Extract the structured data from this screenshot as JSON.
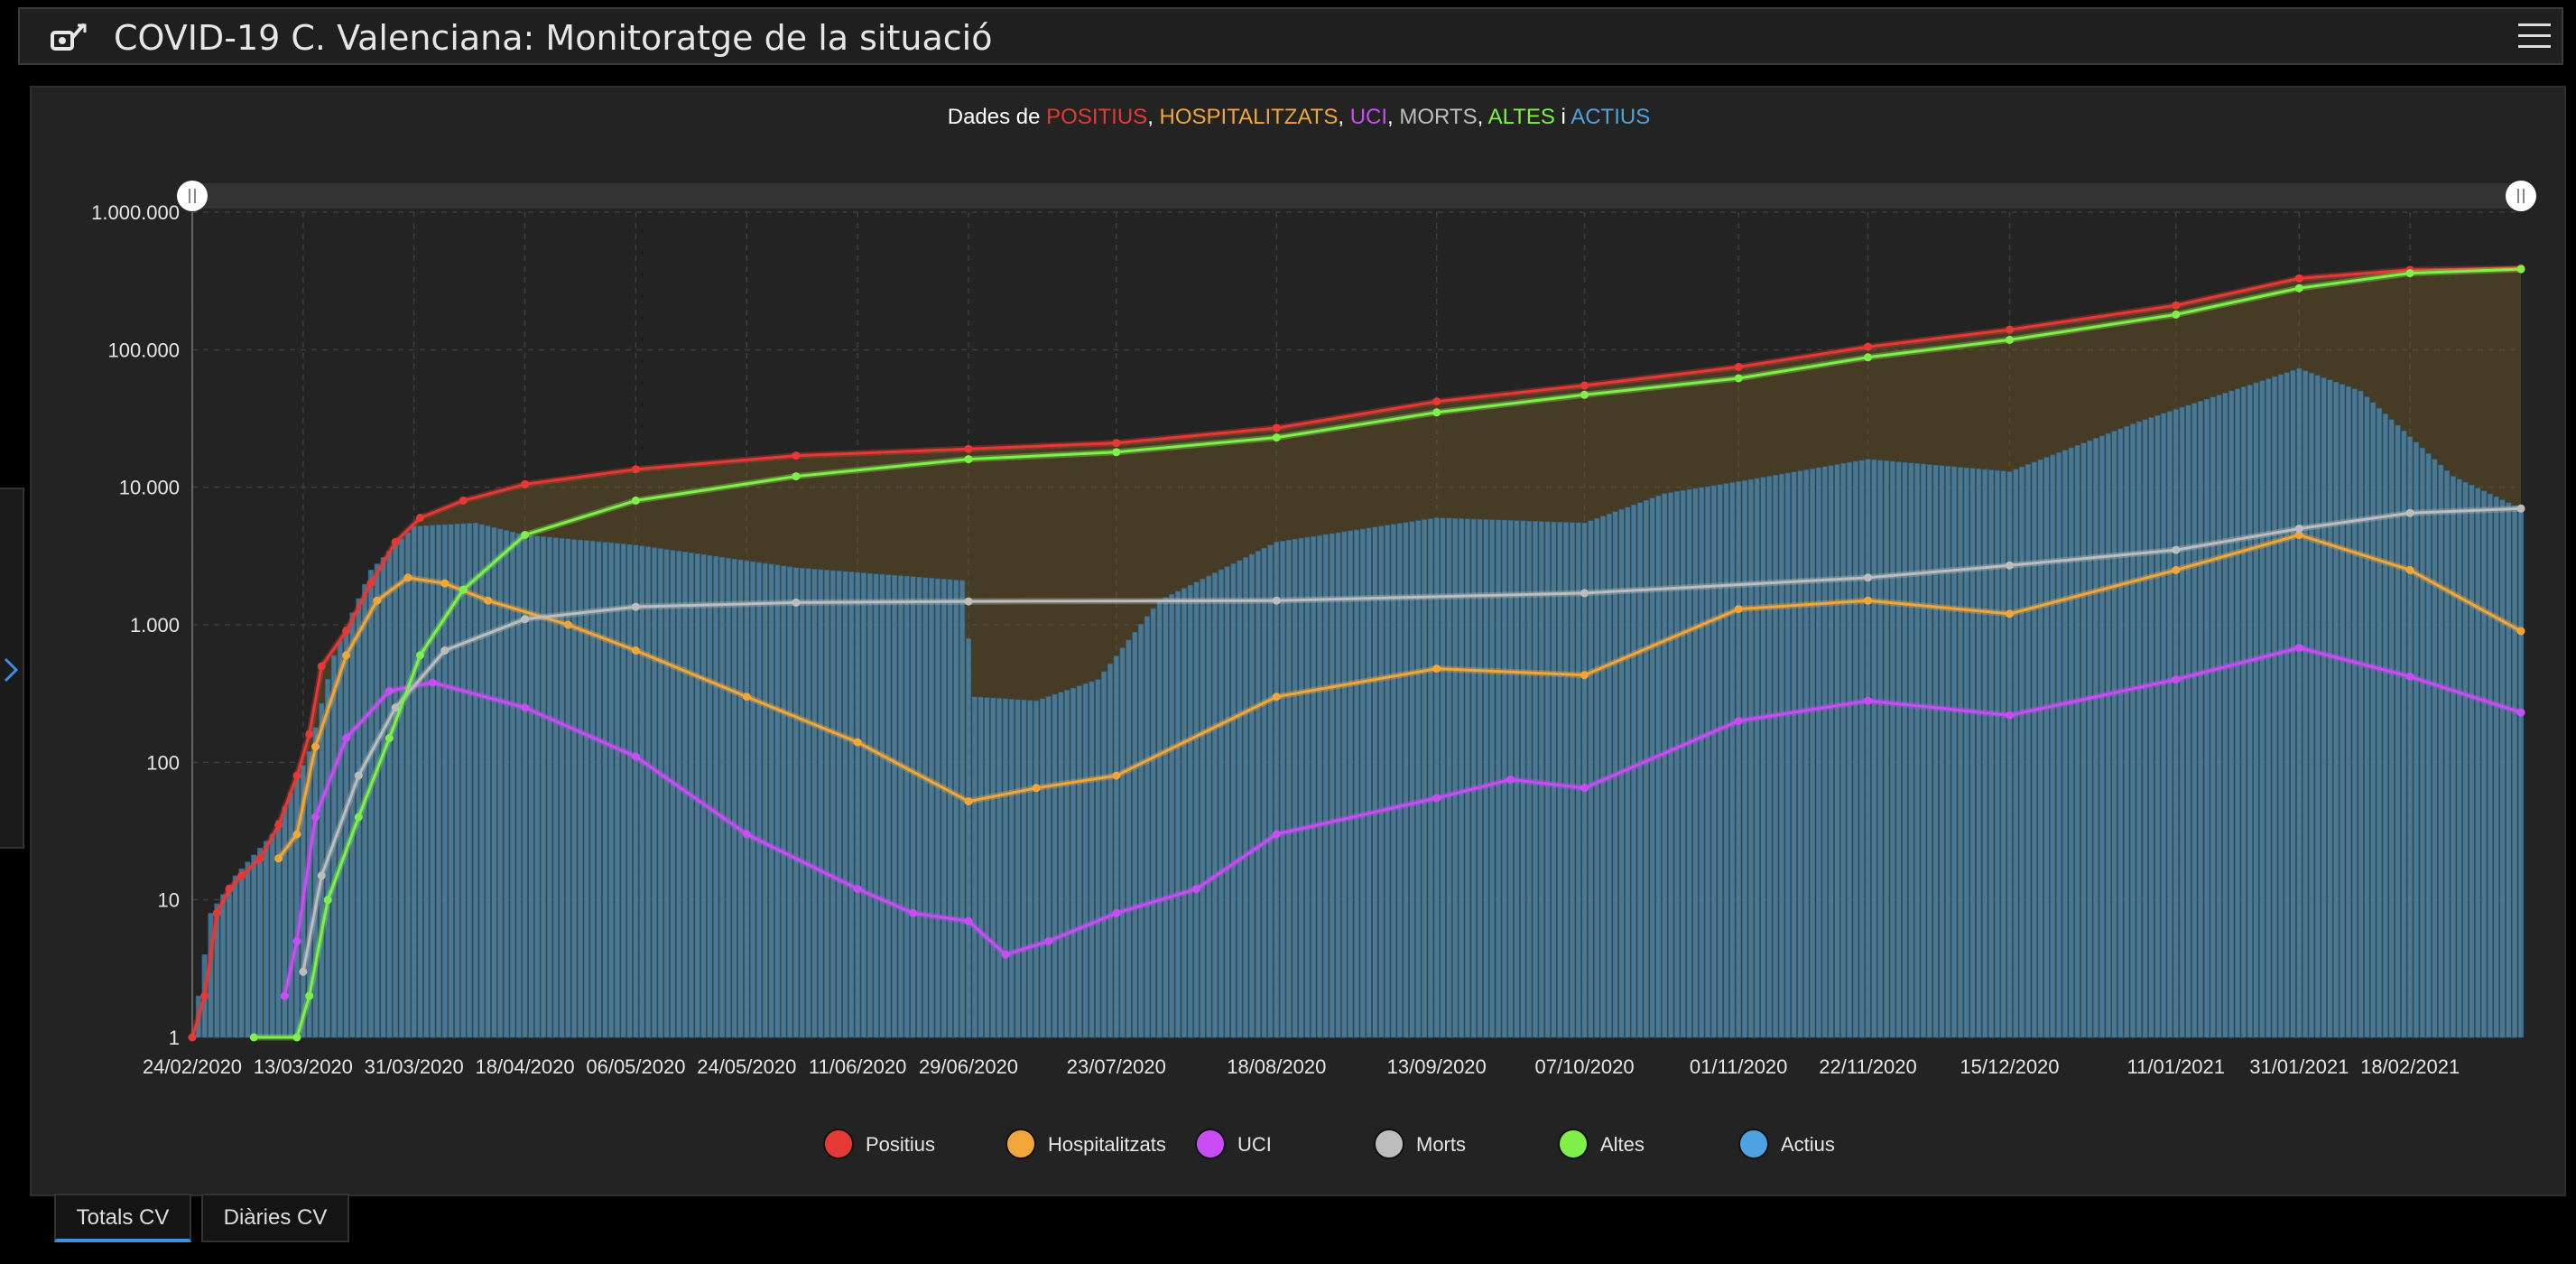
{
  "header": {
    "title": "COVID-19 C. Valenciana: Monitoratge de la situació",
    "icon": "app-logo-icon",
    "menu_icon": "hamburger-menu-icon"
  },
  "side_panel": {
    "toggle_icon": "chevron-right-icon"
  },
  "tabs": [
    {
      "label": "Totals CV",
      "active": true
    },
    {
      "label": "Diàries CV",
      "active": false
    }
  ],
  "chart_data": {
    "type": "line",
    "title_parts": [
      {
        "text": "Dades de ",
        "color": "#ffffff"
      },
      {
        "text": "POSITIUS",
        "color": "#e53935"
      },
      {
        "text": ", ",
        "color": "#ffffff"
      },
      {
        "text": "HOSPITALITZATS",
        "color": "#f0a63a"
      },
      {
        "text": ", ",
        "color": "#ffffff"
      },
      {
        "text": "UCI",
        "color": "#c94cf5"
      },
      {
        "text": ", ",
        "color": "#ffffff"
      },
      {
        "text": "MORTS",
        "color": "#bdbdbd"
      },
      {
        "text": ", ",
        "color": "#ffffff"
      },
      {
        "text": "ALTES",
        "color": "#7ff04a"
      },
      {
        "text": " i ",
        "color": "#ffffff"
      },
      {
        "text": "ACTIUS",
        "color": "#4ca3e0"
      }
    ],
    "y_scale": "log",
    "ylim": [
      1,
      1000000
    ],
    "y_ticks": [
      {
        "value": 1,
        "label": "1"
      },
      {
        "value": 10,
        "label": "10"
      },
      {
        "value": 100,
        "label": "100"
      },
      {
        "value": 1000,
        "label": "1.000"
      },
      {
        "value": 10000,
        "label": "10.000"
      },
      {
        "value": 100000,
        "label": "100.000"
      },
      {
        "value": 1000000,
        "label": "1.000.000"
      }
    ],
    "x_range": [
      "2020-02-24",
      "2021-03-08"
    ],
    "x_ticks": [
      {
        "date": "2020-02-24",
        "label": "24/02/2020"
      },
      {
        "date": "2020-03-13",
        "label": "13/03/2020"
      },
      {
        "date": "2020-03-31",
        "label": "31/03/2020"
      },
      {
        "date": "2020-04-18",
        "label": "18/04/2020"
      },
      {
        "date": "2020-05-06",
        "label": "06/05/2020"
      },
      {
        "date": "2020-05-24",
        "label": "24/05/2020"
      },
      {
        "date": "2020-06-11",
        "label": "11/06/2020"
      },
      {
        "date": "2020-06-29",
        "label": "29/06/2020"
      },
      {
        "date": "2020-07-23",
        "label": "23/07/2020"
      },
      {
        "date": "2020-08-18",
        "label": "18/08/2020"
      },
      {
        "date": "2020-09-13",
        "label": "13/09/2020"
      },
      {
        "date": "2020-10-07",
        "label": "07/10/2020"
      },
      {
        "date": "2020-11-01",
        "label": "01/11/2020"
      },
      {
        "date": "2020-11-22",
        "label": "22/11/2020"
      },
      {
        "date": "2020-12-15",
        "label": "15/12/2020"
      },
      {
        "date": "2021-01-11",
        "label": "11/01/2021"
      },
      {
        "date": "2021-01-31",
        "label": "31/01/2021"
      },
      {
        "date": "2021-02-18",
        "label": "18/02/2021"
      }
    ],
    "grid": true,
    "legend_position": "bottom",
    "series": [
      {
        "name": "Positius",
        "color": "#e53935",
        "kind": "line",
        "points": [
          [
            "2020-02-24",
            1
          ],
          [
            "2020-02-26",
            2
          ],
          [
            "2020-02-28",
            8
          ],
          [
            "2020-03-01",
            12
          ],
          [
            "2020-03-03",
            15
          ],
          [
            "2020-03-06",
            20
          ],
          [
            "2020-03-09",
            35
          ],
          [
            "2020-03-12",
            80
          ],
          [
            "2020-03-14",
            160
          ],
          [
            "2020-03-16",
            500
          ],
          [
            "2020-03-20",
            900
          ],
          [
            "2020-03-24",
            2000
          ],
          [
            "2020-03-28",
            4000
          ],
          [
            "2020-04-01",
            6000
          ],
          [
            "2020-04-08",
            8000
          ],
          [
            "2020-04-18",
            10500
          ],
          [
            "2020-05-06",
            13500
          ],
          [
            "2020-06-01",
            17000
          ],
          [
            "2020-06-29",
            19000
          ],
          [
            "2020-07-23",
            21000
          ],
          [
            "2020-08-18",
            27000
          ],
          [
            "2020-09-13",
            42000
          ],
          [
            "2020-10-07",
            55000
          ],
          [
            "2020-11-01",
            75000
          ],
          [
            "2020-11-22",
            105000
          ],
          [
            "2020-12-15",
            140000
          ],
          [
            "2021-01-11",
            210000
          ],
          [
            "2021-01-31",
            330000
          ],
          [
            "2021-02-18",
            380000
          ],
          [
            "2021-03-08",
            390000
          ]
        ]
      },
      {
        "name": "Hospitalitzats",
        "color": "#f0a63a",
        "kind": "line",
        "points": [
          [
            "2020-03-09",
            20
          ],
          [
            "2020-03-12",
            30
          ],
          [
            "2020-03-15",
            130
          ],
          [
            "2020-03-20",
            600
          ],
          [
            "2020-03-25",
            1500
          ],
          [
            "2020-03-30",
            2200
          ],
          [
            "2020-04-05",
            2000
          ],
          [
            "2020-04-12",
            1500
          ],
          [
            "2020-04-25",
            1000
          ],
          [
            "2020-05-06",
            650
          ],
          [
            "2020-05-24",
            300
          ],
          [
            "2020-06-11",
            140
          ],
          [
            "2020-06-29",
            52
          ],
          [
            "2020-07-10",
            65
          ],
          [
            "2020-07-23",
            80
          ],
          [
            "2020-08-18",
            300
          ],
          [
            "2020-09-13",
            480
          ],
          [
            "2020-10-07",
            430
          ],
          [
            "2020-11-01",
            1300
          ],
          [
            "2020-11-22",
            1500
          ],
          [
            "2020-12-15",
            1200
          ],
          [
            "2021-01-11",
            2500
          ],
          [
            "2021-01-31",
            4500
          ],
          [
            "2021-02-18",
            2500
          ],
          [
            "2021-03-08",
            900
          ]
        ]
      },
      {
        "name": "UCI",
        "color": "#c94cf5",
        "kind": "line",
        "points": [
          [
            "2020-03-10",
            2
          ],
          [
            "2020-03-12",
            5
          ],
          [
            "2020-03-15",
            40
          ],
          [
            "2020-03-20",
            150
          ],
          [
            "2020-03-27",
            330
          ],
          [
            "2020-04-03",
            380
          ],
          [
            "2020-04-18",
            250
          ],
          [
            "2020-05-06",
            110
          ],
          [
            "2020-05-24",
            30
          ],
          [
            "2020-06-11",
            12
          ],
          [
            "2020-06-20",
            8
          ],
          [
            "2020-06-29",
            7
          ],
          [
            "2020-07-05",
            4
          ],
          [
            "2020-07-12",
            5
          ],
          [
            "2020-07-23",
            8
          ],
          [
            "2020-08-05",
            12
          ],
          [
            "2020-08-18",
            30
          ],
          [
            "2020-09-13",
            55
          ],
          [
            "2020-09-25",
            75
          ],
          [
            "2020-10-07",
            65
          ],
          [
            "2020-11-01",
            200
          ],
          [
            "2020-11-22",
            280
          ],
          [
            "2020-12-15",
            220
          ],
          [
            "2021-01-11",
            400
          ],
          [
            "2021-01-31",
            680
          ],
          [
            "2021-02-18",
            420
          ],
          [
            "2021-03-08",
            230
          ]
        ]
      },
      {
        "name": "Morts",
        "color": "#bdbdbd",
        "kind": "line",
        "points": [
          [
            "2020-03-13",
            3
          ],
          [
            "2020-03-16",
            15
          ],
          [
            "2020-03-22",
            80
          ],
          [
            "2020-03-28",
            250
          ],
          [
            "2020-04-05",
            650
          ],
          [
            "2020-04-18",
            1100
          ],
          [
            "2020-05-06",
            1350
          ],
          [
            "2020-06-01",
            1450
          ],
          [
            "2020-06-29",
            1480
          ],
          [
            "2020-08-18",
            1500
          ],
          [
            "2020-10-07",
            1700
          ],
          [
            "2020-11-22",
            2200
          ],
          [
            "2020-12-15",
            2700
          ],
          [
            "2021-01-11",
            3500
          ],
          [
            "2021-01-31",
            5000
          ],
          [
            "2021-02-18",
            6500
          ],
          [
            "2021-03-08",
            7000
          ]
        ]
      },
      {
        "name": "Altes",
        "color": "#7ff04a",
        "kind": "line",
        "points": [
          [
            "2020-03-05",
            1
          ],
          [
            "2020-03-12",
            1
          ],
          [
            "2020-03-14",
            2
          ],
          [
            "2020-03-17",
            10
          ],
          [
            "2020-03-22",
            40
          ],
          [
            "2020-03-27",
            150
          ],
          [
            "2020-04-01",
            600
          ],
          [
            "2020-04-08",
            1800
          ],
          [
            "2020-04-18",
            4500
          ],
          [
            "2020-05-06",
            8000
          ],
          [
            "2020-06-01",
            12000
          ],
          [
            "2020-06-29",
            16000
          ],
          [
            "2020-07-23",
            18000
          ],
          [
            "2020-08-18",
            23000
          ],
          [
            "2020-09-13",
            35000
          ],
          [
            "2020-10-07",
            47000
          ],
          [
            "2020-11-01",
            62000
          ],
          [
            "2020-11-22",
            88000
          ],
          [
            "2020-12-15",
            118000
          ],
          [
            "2021-01-11",
            180000
          ],
          [
            "2021-01-31",
            280000
          ],
          [
            "2021-02-18",
            360000
          ],
          [
            "2021-03-08",
            385000
          ]
        ]
      },
      {
        "name": "Actius",
        "color": "#4ca3e0",
        "kind": "bar",
        "points": [
          [
            "2020-02-24",
            1
          ],
          [
            "2020-02-27",
            8
          ],
          [
            "2020-03-02",
            15
          ],
          [
            "2020-03-08",
            30
          ],
          [
            "2020-03-14",
            120
          ],
          [
            "2020-03-18",
            600
          ],
          [
            "2020-03-24",
            2500
          ],
          [
            "2020-03-31",
            5200
          ],
          [
            "2020-04-10",
            5500
          ],
          [
            "2020-04-18",
            4500
          ],
          [
            "2020-05-06",
            3800
          ],
          [
            "2020-06-01",
            2600
          ],
          [
            "2020-06-28",
            2100
          ],
          [
            "2020-06-30",
            300
          ],
          [
            "2020-07-10",
            280
          ],
          [
            "2020-07-20",
            400
          ],
          [
            "2020-07-30",
            1500
          ],
          [
            "2020-08-18",
            4000
          ],
          [
            "2020-09-13",
            6000
          ],
          [
            "2020-10-07",
            5500
          ],
          [
            "2020-10-20",
            9000
          ],
          [
            "2020-11-01",
            11000
          ],
          [
            "2020-11-22",
            16000
          ],
          [
            "2020-12-15",
            13000
          ],
          [
            "2021-01-05",
            30000
          ],
          [
            "2021-01-31",
            73000
          ],
          [
            "2021-02-10",
            50000
          ],
          [
            "2021-02-25",
            12000
          ],
          [
            "2021-03-08",
            7000
          ]
        ]
      }
    ]
  }
}
